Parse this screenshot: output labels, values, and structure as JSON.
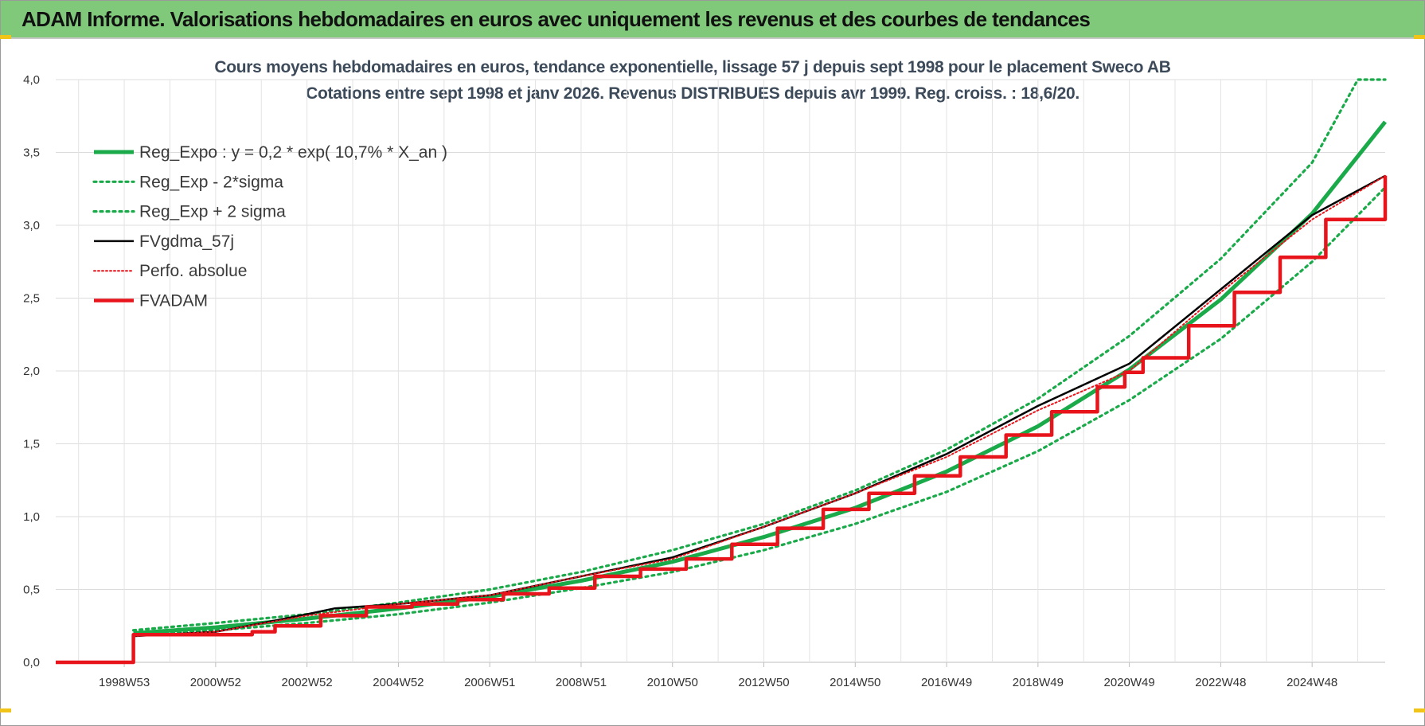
{
  "banner": {
    "title": "ADAM Informe. Valorisations hebdomadaires en euros avec uniquement les revenus et des courbes de tendances"
  },
  "colors": {
    "banner": "#80c97b",
    "green": "#1aaa4a",
    "black": "#000000",
    "red": "#e8141b"
  },
  "chart_data": {
    "type": "line",
    "title": "Cours moyens hebdomadaires en euros, tendance exponentielle, lissage 57 j depuis sept 1998 pour le placement Sweco AB",
    "subtitle": "Cotations entre sept 1998 et janv 2026. Revenus DISTRIBUES depuis avr 1999. Reg. croiss. : 18,6/20.",
    "xlabel": "",
    "ylabel": "",
    "xlim": [
      1997.5,
      2026.6
    ],
    "ylim": [
      0,
      4
    ],
    "yticks": [
      "0,0",
      "0,5",
      "1,0",
      "1,5",
      "2,0",
      "2,5",
      "3,0",
      "3,5",
      "4,0"
    ],
    "xticks": [
      {
        "label": "1998W53",
        "x": 1999.0
      },
      {
        "label": "2000W52",
        "x": 2001.0
      },
      {
        "label": "2002W52",
        "x": 2003.0
      },
      {
        "label": "2004W52",
        "x": 2005.0
      },
      {
        "label": "2006W51",
        "x": 2007.0
      },
      {
        "label": "2008W51",
        "x": 2009.0
      },
      {
        "label": "2010W50",
        "x": 2011.0
      },
      {
        "label": "2012W50",
        "x": 2013.0
      },
      {
        "label": "2014W50",
        "x": 2015.0
      },
      {
        "label": "2016W49",
        "x": 2017.0
      },
      {
        "label": "2018W49",
        "x": 2019.0
      },
      {
        "label": "2020W49",
        "x": 2021.0
      },
      {
        "label": "2022W48",
        "x": 2023.0
      },
      {
        "label": "2024W48",
        "x": 2025.0
      }
    ],
    "grid": true,
    "legend_position": "top-left",
    "series": [
      {
        "name": "Reg_Expo : y = 0,2 * exp( 10,7% *  X_an )",
        "style": "solid-thick",
        "color": "#1aaa4a",
        "x": [
          1999.2,
          2001,
          2003,
          2005,
          2007,
          2009,
          2011,
          2013,
          2015,
          2017,
          2019,
          2021,
          2023,
          2025,
          2026.6
        ],
        "values": [
          0.2,
          0.24,
          0.3,
          0.37,
          0.45,
          0.56,
          0.69,
          0.86,
          1.06,
          1.31,
          1.62,
          2.01,
          2.49,
          3.08,
          3.71
        ]
      },
      {
        "name": "Reg_Exp - 2*sigma",
        "style": "dotted",
        "color": "#1aaa4a",
        "x": [
          1999.2,
          2001,
          2003,
          2005,
          2007,
          2009,
          2011,
          2013,
          2015,
          2017,
          2019,
          2021,
          2023,
          2025,
          2026.6
        ],
        "values": [
          0.19,
          0.22,
          0.27,
          0.33,
          0.41,
          0.51,
          0.62,
          0.77,
          0.95,
          1.17,
          1.45,
          1.8,
          2.22,
          2.75,
          3.26
        ]
      },
      {
        "name": "Reg_Exp + 2 sigma",
        "style": "dotted",
        "color": "#1aaa4a",
        "x": [
          1999.2,
          2001,
          2003,
          2005,
          2007,
          2009,
          2011,
          2013,
          2015,
          2017,
          2019,
          2021,
          2023,
          2025,
          2026.0,
          2026.6
        ],
        "values": [
          0.22,
          0.27,
          0.33,
          0.41,
          0.5,
          0.62,
          0.77,
          0.95,
          1.18,
          1.46,
          1.81,
          2.24,
          2.77,
          3.43,
          4.0,
          4.0
        ]
      },
      {
        "name": "FVgdma_57j",
        "style": "solid",
        "color": "#000000",
        "x": [
          1997.5,
          1999.2,
          1999.2,
          2001,
          2001.7,
          2003,
          2003.6,
          2005,
          2007,
          2009,
          2011,
          2013,
          2015,
          2017,
          2019,
          2021,
          2023,
          2025,
          2026.6
        ],
        "values": [
          0,
          0,
          0.18,
          0.21,
          0.25,
          0.33,
          0.37,
          0.4,
          0.46,
          0.59,
          0.72,
          0.93,
          1.16,
          1.43,
          1.76,
          2.05,
          2.56,
          3.07,
          3.34
        ]
      },
      {
        "name": "Perfo. absolue",
        "style": "dotted-thin",
        "color": "#e8141b",
        "x": [
          1999.2,
          2001,
          2003,
          2005,
          2007,
          2009,
          2011,
          2013,
          2015,
          2017,
          2019,
          2021,
          2023,
          2025,
          2026.6
        ],
        "values": [
          0.18,
          0.21,
          0.32,
          0.4,
          0.46,
          0.59,
          0.71,
          0.93,
          1.16,
          1.41,
          1.73,
          2.0,
          2.54,
          3.04,
          3.34
        ]
      },
      {
        "name": "FVADAM",
        "style": "step-thick",
        "color": "#e8141b",
        "x": [
          1997.5,
          1999.2,
          1999.2,
          2001.8,
          2002.3,
          2003.3,
          2004.3,
          2005.3,
          2006.3,
          2007.3,
          2008.3,
          2009.3,
          2010.3,
          2011.3,
          2012.3,
          2013.3,
          2014.3,
          2015.3,
          2016.3,
          2017.3,
          2018.3,
          2019.3,
          2020.3,
          2020.9,
          2021.3,
          2022.3,
          2023.3,
          2024.3,
          2025.3,
          2026.6
        ],
        "values": [
          0,
          0,
          0.19,
          0.21,
          0.25,
          0.32,
          0.38,
          0.4,
          0.43,
          0.47,
          0.51,
          0.59,
          0.64,
          0.71,
          0.81,
          0.92,
          1.05,
          1.16,
          1.28,
          1.41,
          1.56,
          1.72,
          1.89,
          1.99,
          2.09,
          2.31,
          2.54,
          2.78,
          3.04,
          3.34
        ]
      }
    ]
  }
}
